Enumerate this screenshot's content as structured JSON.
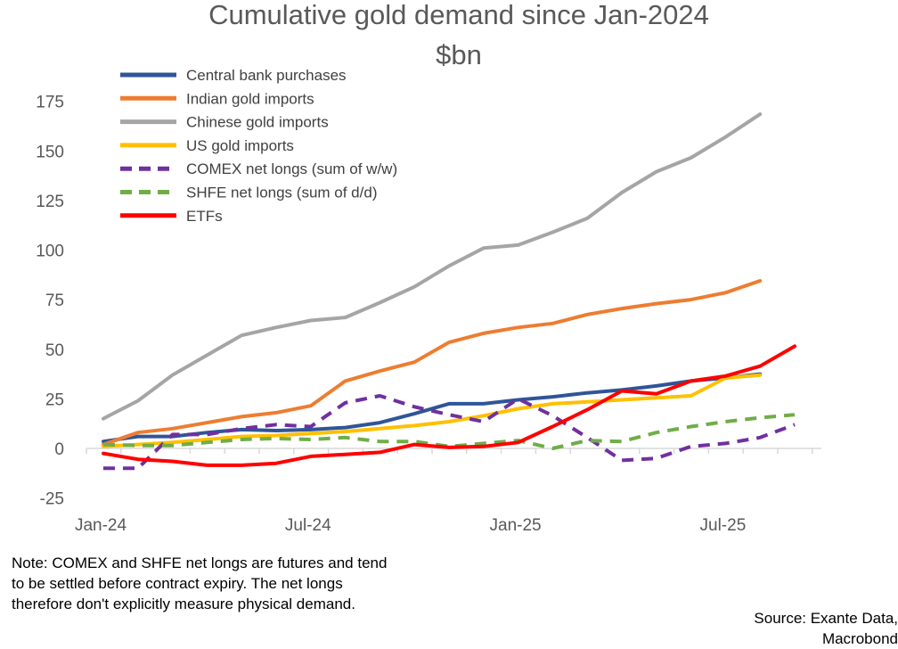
{
  "chart_data": {
    "type": "line",
    "title": [
      "Cumulative gold demand since Jan-2024",
      "$bn"
    ],
    "xlabel": "",
    "ylabel": "",
    "ylim": [
      -25,
      175
    ],
    "yticks": [
      -25,
      0,
      25,
      50,
      75,
      100,
      125,
      150,
      175
    ],
    "x": [
      "2024-01",
      "2024-02",
      "2024-03",
      "2024-04",
      "2024-05",
      "2024-06",
      "2024-07",
      "2024-08",
      "2024-09",
      "2024-10",
      "2024-11",
      "2024-12",
      "2025-01",
      "2025-02",
      "2025-03",
      "2025-04",
      "2025-05",
      "2025-06",
      "2025-07",
      "2025-08",
      "2025-09"
    ],
    "xtick_labels": [
      {
        "label": "Jan-24",
        "index": 0
      },
      {
        "label": "Jul-24",
        "index": 6
      },
      {
        "label": "Jan-25",
        "index": 12
      },
      {
        "label": "Jul-25",
        "index": 18
      }
    ],
    "series": [
      {
        "name": "Central bank purchases",
        "color": "#2F5597",
        "dash": false,
        "width": 4,
        "values": [
          3.5,
          6,
          6,
          8,
          9.5,
          9,
          9.5,
          10.5,
          13,
          17.5,
          22.5,
          22.5,
          24.5,
          26,
          28,
          29.5,
          31.5,
          34,
          35.5,
          37.5,
          null
        ]
      },
      {
        "name": "Indian gold imports",
        "color": "#ED7D31",
        "dash": false,
        "width": 4,
        "values": [
          2,
          8,
          10,
          13,
          16,
          18,
          21.5,
          34,
          39,
          43.5,
          53.5,
          58,
          61,
          63,
          67.5,
          70.5,
          73,
          75,
          78.5,
          84.5,
          null
        ]
      },
      {
        "name": "Chinese gold imports",
        "color": "#A5A5A5",
        "dash": false,
        "width": 4,
        "values": [
          15,
          24,
          37,
          47,
          57,
          61,
          64.5,
          66,
          73.5,
          81.5,
          92,
          101,
          102.5,
          109,
          116,
          129,
          139.5,
          146.5,
          157,
          168.5,
          null
        ]
      },
      {
        "name": "US gold imports",
        "color": "#FFC000",
        "dash": false,
        "width": 4,
        "values": [
          1,
          2,
          3,
          4.5,
          6,
          6.5,
          7.5,
          8.5,
          10,
          11.5,
          13.5,
          16.5,
          20,
          22.5,
          23.5,
          24.5,
          25.5,
          26.5,
          35.5,
          37,
          null
        ]
      },
      {
        "name": "COMEX net longs (sum of w/w)",
        "color": "#7030A0",
        "dash": true,
        "width": 4,
        "values": [
          -10,
          -10,
          7,
          7,
          10,
          12,
          11,
          23,
          26.5,
          21,
          17,
          13.5,
          25,
          16.5,
          5.5,
          -6,
          -5,
          1,
          2.5,
          5.5,
          12
        ]
      },
      {
        "name": "SHFE net longs (sum of d/d)",
        "color": "#70AD47",
        "dash": true,
        "width": 4,
        "values": [
          2,
          1.5,
          1.5,
          3,
          4.5,
          5,
          4.5,
          5.5,
          3.5,
          3.5,
          1,
          2.5,
          4,
          0,
          4,
          3.5,
          8,
          11,
          13.5,
          15.5,
          17
        ]
      },
      {
        "name": "ETFs",
        "color": "#FF0000",
        "dash": false,
        "width": 4,
        "values": [
          -2.5,
          -5.5,
          -6.5,
          -8.5,
          -8.5,
          -7.5,
          -4,
          -3,
          -2,
          2,
          0.5,
          1,
          3,
          11,
          19.5,
          29,
          27.5,
          34,
          36.5,
          41.5,
          51.5
        ]
      }
    ]
  },
  "note": {
    "lines": [
      "Note: COMEX and SHFE net longs are futures and tend",
      "to be settled before contract expiry. The net longs",
      "therefore don't explicitly measure physical demand."
    ]
  },
  "source": {
    "lines": [
      "Source: Exante Data,",
      "Macrobond"
    ]
  }
}
